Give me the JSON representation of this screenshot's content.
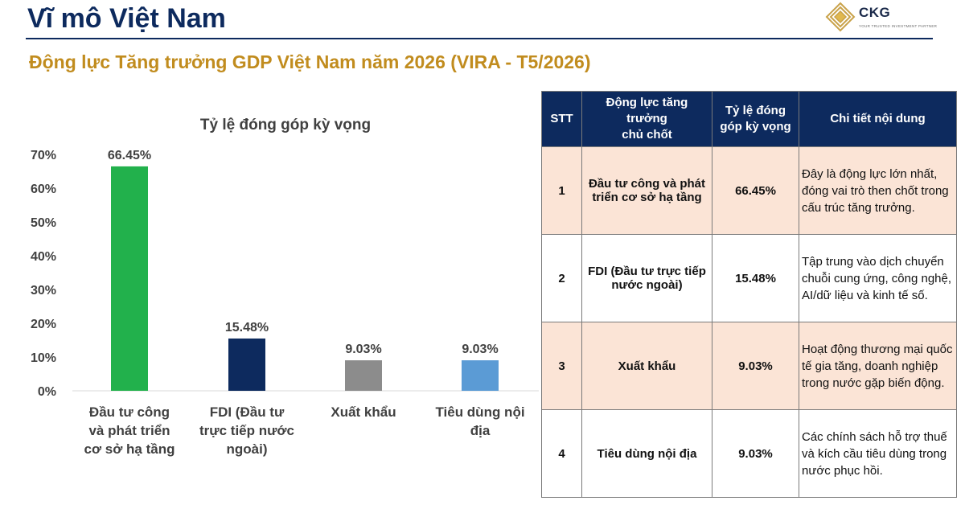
{
  "header": {
    "title": "Vĩ mô Việt Nam",
    "subtitle": "Động lực Tăng trưởng GDP Việt Nam năm 2026 (VIRA - T5/2026)"
  },
  "logo": {
    "name": "CKG",
    "tagline": "YOUR TRUSTED INVESTMENT PARTNER"
  },
  "colors": {
    "navy": "#0d2a5e",
    "gold": "#c18c1e",
    "row_pink": "#fbe4d6",
    "bar_green": "#22b14c",
    "bar_navy": "#0d2a5e",
    "bar_gray": "#8c8c8c",
    "bar_blue": "#5b9bd5"
  },
  "chart_data": {
    "type": "bar",
    "title": "Tỷ lệ đóng góp kỳ vọng",
    "categories": [
      "Đầu tư công và phát triển cơ sở hạ tầng",
      "FDI (Đầu tư trực tiếp nước ngoài)",
      "Xuất khẩu",
      "Tiêu dùng nội địa"
    ],
    "category_lines": [
      [
        "Đầu tư công",
        "và phát triển",
        "cơ sở hạ tầng"
      ],
      [
        "FDI (Đầu tư",
        "trực tiếp nước",
        "ngoài)"
      ],
      [
        "Xuất khẩu"
      ],
      [
        "Tiêu dùng nội",
        "địa"
      ]
    ],
    "values": [
      66.45,
      15.48,
      9.03,
      9.03
    ],
    "value_labels": [
      "66.45%",
      "15.48%",
      "9.03%",
      "9.03%"
    ],
    "bar_colors": [
      "#22b14c",
      "#0d2a5e",
      "#8c8c8c",
      "#5b9bd5"
    ],
    "ylim": [
      0,
      70
    ],
    "yticks": [
      "0%",
      "10%",
      "20%",
      "30%",
      "40%",
      "50%",
      "60%",
      "70%"
    ],
    "xlabel": "",
    "ylabel": "",
    "grid": false,
    "legend": "none"
  },
  "table": {
    "headers": [
      "STT",
      "Động lực tăng trưởng chủ chốt",
      "Tỷ lệ đóng góp kỳ vọng",
      "Chi tiết nội dung"
    ],
    "header_lines": [
      [
        "STT"
      ],
      [
        "Động lực tăng",
        "trưởng",
        "chủ chốt"
      ],
      [
        "Tỷ lệ đóng",
        "góp kỳ vọng"
      ],
      [
        "Chi tiết nội dung"
      ]
    ],
    "rows": [
      {
        "stt": "1",
        "driver": "Đầu tư công và phát triển cơ sở hạ tầng",
        "share": "66.45%",
        "detail": "Đây là động lực lớn nhất, đóng vai trò then chốt trong cấu trúc tăng trưởng."
      },
      {
        "stt": "2",
        "driver": "FDI (Đầu tư trực tiếp nước ngoài)",
        "share": "15.48%",
        "detail": "Tập trung vào dịch chuyển chuỗi cung ứng, công nghệ, AI/dữ liệu và kinh tế số."
      },
      {
        "stt": "3",
        "driver": "Xuất khẩu",
        "share": "9.03%",
        "detail": "Hoạt động thương mại quốc tế gia tăng, doanh nghiệp trong nước gặp biến động."
      },
      {
        "stt": "4",
        "driver": "Tiêu dùng nội địa",
        "share": "9.03%",
        "detail": "Các chính sách hỗ trợ thuế và kích cầu tiêu dùng trong nước phục hồi."
      }
    ]
  }
}
